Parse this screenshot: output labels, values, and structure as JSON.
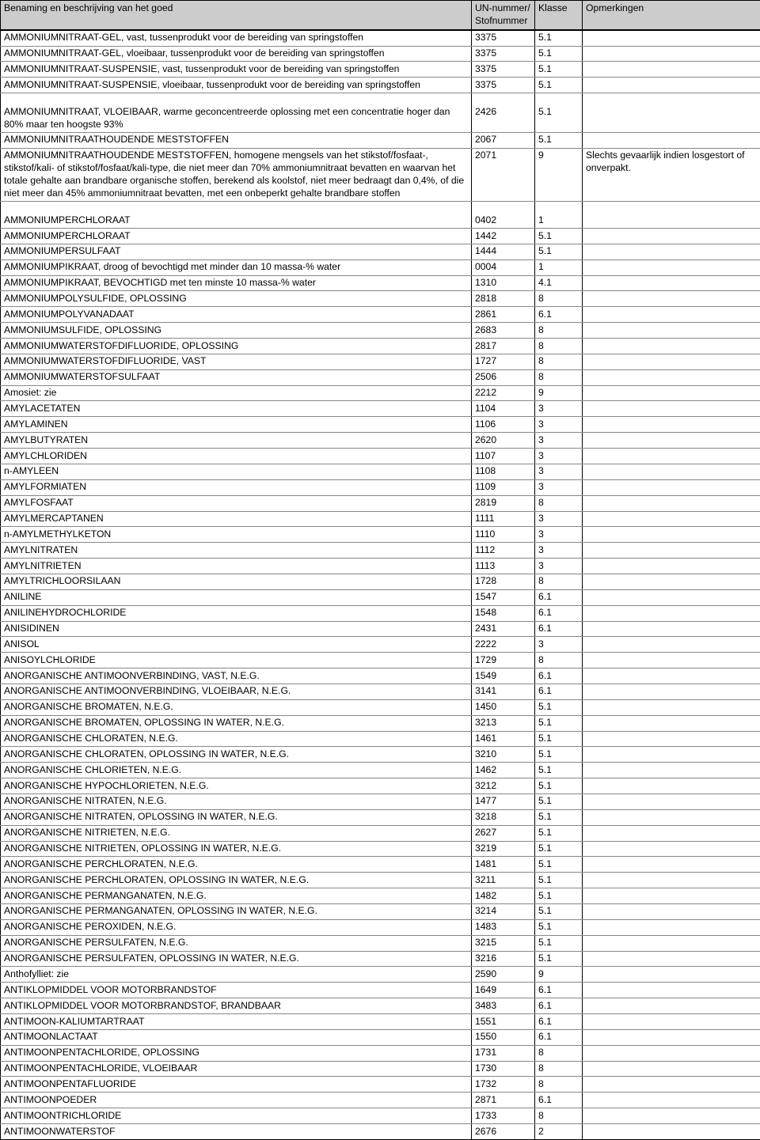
{
  "columns": [
    {
      "key": "name",
      "header": "Benaming en beschrijving van het goed"
    },
    {
      "key": "un",
      "header": "UN-nummer/\nStofnummer"
    },
    {
      "key": "klasse",
      "header": "Klasse"
    },
    {
      "key": "opm",
      "header": "Opmerkingen"
    }
  ],
  "rows": [
    {
      "name": "AMMONIUMNITRAAT-GEL, vast, tussenprodukt voor de bereiding van springstoffen",
      "un": "3375",
      "klasse": "5.1",
      "opm": ""
    },
    {
      "name": "AMMONIUMNITRAAT-GEL, vloeibaar, tussenprodukt voor de bereiding van springstoffen",
      "un": "3375",
      "klasse": "5.1",
      "opm": ""
    },
    {
      "name": "AMMONIUMNITRAAT-SUSPENSIE, vast, tussenprodukt voor de bereiding van springstoffen",
      "un": "3375",
      "klasse": "5.1",
      "opm": ""
    },
    {
      "name": "AMMONIUMNITRAAT-SUSPENSIE, vloeibaar, tussenprodukt voor de bereiding van springstoffen",
      "un": "3375",
      "klasse": "5.1",
      "opm": ""
    },
    {
      "spacer": true
    },
    {
      "name": "AMMONIUMNITRAAT, VLOEIBAAR, warme geconcentreerde oplossing met een concentratie hoger dan 80% maar ten hoogste 93%",
      "un": "2426",
      "klasse": "5.1",
      "opm": ""
    },
    {
      "name": "AMMONIUMNITRAATHOUDENDE MESTSTOFFEN",
      "un": "2067",
      "klasse": "5.1",
      "opm": ""
    },
    {
      "name": "AMMONIUMNITRAATHOUDENDE MESTSTOFFEN, homogene mengsels van het stikstof/fosfaat-, stikstof/kali- of stikstof/fosfaat/kali-type, die niet meer dan 70% ammoniumnitraat bevatten en waarvan het totale gehalte aan brandbare organische stoffen, berekend als koolstof, niet meer bedraagt dan 0,4%, of die niet meer dan 45% ammoniumnitraat bevatten, met een onbeperkt gehalte brandbare stoffen",
      "un": "2071",
      "klasse": "9",
      "opm": "Slechts gevaarlijk indien losgestort of onverpakt."
    },
    {
      "spacer": true
    },
    {
      "name": "AMMONIUMPERCHLORAAT",
      "un": "0402",
      "klasse": "1",
      "opm": ""
    },
    {
      "name": "AMMONIUMPERCHLORAAT",
      "un": "1442",
      "klasse": "5.1",
      "opm": ""
    },
    {
      "name": "AMMONIUMPERSULFAAT",
      "un": "1444",
      "klasse": "5.1",
      "opm": ""
    },
    {
      "name": "AMMONIUMPIKRAAT, droog of bevochtigd met minder dan 10 massa-% water",
      "un": "0004",
      "klasse": "1",
      "opm": ""
    },
    {
      "name": "AMMONIUMPIKRAAT, BEVOCHTIGD met ten minste 10 massa-% water",
      "un": "1310",
      "klasse": "4.1",
      "opm": ""
    },
    {
      "name": "AMMONIUMPOLYSULFIDE, OPLOSSING",
      "un": "2818",
      "klasse": "8",
      "opm": ""
    },
    {
      "name": "AMMONIUMPOLYVANADAAT",
      "un": "2861",
      "klasse": "6.1",
      "opm": ""
    },
    {
      "name": "AMMONIUMSULFIDE, OPLOSSING",
      "un": "2683",
      "klasse": "8",
      "opm": ""
    },
    {
      "name": "AMMONIUMWATERSTOFDIFLUORIDE, OPLOSSING",
      "un": "2817",
      "klasse": "8",
      "opm": ""
    },
    {
      "name": "AMMONIUMWATERSTOFDIFLUORIDE, VAST",
      "un": "1727",
      "klasse": "8",
      "opm": ""
    },
    {
      "name": "AMMONIUMWATERSTOFSULFAAT",
      "un": "2506",
      "klasse": "8",
      "opm": ""
    },
    {
      "name": "Amosiet: zie",
      "un": "2212",
      "klasse": "9",
      "opm": ""
    },
    {
      "name": "AMYLACETATEN",
      "un": "1104",
      "klasse": "3",
      "opm": ""
    },
    {
      "name": "AMYLAMINEN",
      "un": "1106",
      "klasse": "3",
      "opm": ""
    },
    {
      "name": "AMYLBUTYRATEN",
      "un": "2620",
      "klasse": "3",
      "opm": ""
    },
    {
      "name": "AMYLCHLORIDEN",
      "un": "1107",
      "klasse": "3",
      "opm": ""
    },
    {
      "name": "n-AMYLEEN",
      "un": "1108",
      "klasse": "3",
      "opm": ""
    },
    {
      "name": "AMYLFORMIATEN",
      "un": "1109",
      "klasse": "3",
      "opm": ""
    },
    {
      "name": "AMYLFOSFAAT",
      "un": "2819",
      "klasse": "8",
      "opm": ""
    },
    {
      "name": "AMYLMERCAPTANEN",
      "un": "1111",
      "klasse": "3",
      "opm": ""
    },
    {
      "name": "n-AMYLMETHYLKETON",
      "un": "1110",
      "klasse": "3",
      "opm": ""
    },
    {
      "name": "AMYLNITRATEN",
      "un": "1112",
      "klasse": "3",
      "opm": ""
    },
    {
      "name": "AMYLNITRIETEN",
      "un": "1113",
      "klasse": "3",
      "opm": ""
    },
    {
      "name": "AMYLTRICHLOORSILAAN",
      "un": "1728",
      "klasse": "8",
      "opm": ""
    },
    {
      "name": "ANILINE",
      "un": "1547",
      "klasse": "6.1",
      "opm": ""
    },
    {
      "name": "ANILINEHYDROCHLORIDE",
      "un": "1548",
      "klasse": "6.1",
      "opm": ""
    },
    {
      "name": "ANISIDINEN",
      "un": "2431",
      "klasse": "6.1",
      "opm": ""
    },
    {
      "name": "ANISOL",
      "un": "2222",
      "klasse": "3",
      "opm": ""
    },
    {
      "name": "ANISOYLCHLORIDE",
      "un": "1729",
      "klasse": "8",
      "opm": ""
    },
    {
      "name": "ANORGANISCHE ANTIMOONVERBINDING, VAST, N.E.G.",
      "un": "1549",
      "klasse": "6.1",
      "opm": ""
    },
    {
      "name": "ANORGANISCHE ANTIMOONVERBINDING, VLOEIBAAR, N.E.G.",
      "un": "3141",
      "klasse": "6.1",
      "opm": ""
    },
    {
      "name": "ANORGANISCHE BROMATEN, N.E.G.",
      "un": "1450",
      "klasse": "5.1",
      "opm": ""
    },
    {
      "name": "ANORGANISCHE BROMATEN, OPLOSSING IN WATER, N.E.G.",
      "un": "3213",
      "klasse": "5.1",
      "opm": ""
    },
    {
      "name": "ANORGANISCHE CHLORATEN, N.E.G.",
      "un": "1461",
      "klasse": "5.1",
      "opm": ""
    },
    {
      "name": "ANORGANISCHE CHLORATEN, OPLOSSING IN WATER, N.E.G.",
      "un": "3210",
      "klasse": "5.1",
      "opm": ""
    },
    {
      "name": "ANORGANISCHE CHLORIETEN, N.E.G.",
      "un": "1462",
      "klasse": "5.1",
      "opm": ""
    },
    {
      "name": "ANORGANISCHE HYPOCHLORIETEN, N.E.G.",
      "un": "3212",
      "klasse": "5.1",
      "opm": ""
    },
    {
      "name": "ANORGANISCHE NITRATEN, N.E.G.",
      "un": "1477",
      "klasse": "5.1",
      "opm": ""
    },
    {
      "name": "ANORGANISCHE NITRATEN, OPLOSSING IN WATER, N.E.G.",
      "un": "3218",
      "klasse": "5.1",
      "opm": ""
    },
    {
      "name": "ANORGANISCHE NITRIETEN, N.E.G.",
      "un": "2627",
      "klasse": "5.1",
      "opm": ""
    },
    {
      "name": "ANORGANISCHE NITRIETEN, OPLOSSING IN WATER, N.E.G.",
      "un": "3219",
      "klasse": "5.1",
      "opm": ""
    },
    {
      "name": "ANORGANISCHE PERCHLORATEN, N.E.G.",
      "un": "1481",
      "klasse": "5.1",
      "opm": ""
    },
    {
      "name": "ANORGANISCHE PERCHLORATEN, OPLOSSING IN WATER, N.E.G.",
      "un": "3211",
      "klasse": "5.1",
      "opm": ""
    },
    {
      "name": "ANORGANISCHE PERMANGANATEN, N.E.G.",
      "un": "1482",
      "klasse": "5.1",
      "opm": ""
    },
    {
      "name": "ANORGANISCHE PERMANGANATEN, OPLOSSING IN WATER, N.E.G.",
      "un": "3214",
      "klasse": "5.1",
      "opm": ""
    },
    {
      "name": "ANORGANISCHE PEROXIDEN, N.E.G.",
      "un": "1483",
      "klasse": "5.1",
      "opm": ""
    },
    {
      "name": "ANORGANISCHE PERSULFATEN, N.E.G.",
      "un": "3215",
      "klasse": "5.1",
      "opm": ""
    },
    {
      "name": "ANORGANISCHE PERSULFATEN, OPLOSSING IN WATER, N.E.G.",
      "un": "3216",
      "klasse": "5.1",
      "opm": ""
    },
    {
      "name": "Anthofylliet: zie",
      "un": "2590",
      "klasse": "9",
      "opm": ""
    },
    {
      "name": "ANTIKLOPMIDDEL VOOR MOTORBRANDSTOF",
      "un": "1649",
      "klasse": "6.1",
      "opm": ""
    },
    {
      "name": "ANTIKLOPMIDDEL VOOR MOTORBRANDSTOF, BRANDBAAR",
      "un": "3483",
      "klasse": "6.1",
      "opm": ""
    },
    {
      "name": "ANTIMOON-KALIUMTARTRAAT",
      "un": "1551",
      "klasse": "6.1",
      "opm": ""
    },
    {
      "name": "ANTIMOONLACTAAT",
      "un": "1550",
      "klasse": "6.1",
      "opm": ""
    },
    {
      "name": "ANTIMOONPENTACHLORIDE, OPLOSSING",
      "un": "1731",
      "klasse": "8",
      "opm": ""
    },
    {
      "name": "ANTIMOONPENTACHLORIDE, VLOEIBAAR",
      "un": "1730",
      "klasse": "8",
      "opm": ""
    },
    {
      "name": "ANTIMOONPENTAFLUORIDE",
      "un": "1732",
      "klasse": "8",
      "opm": ""
    },
    {
      "name": "ANTIMOONPOEDER",
      "un": "2871",
      "klasse": "6.1",
      "opm": ""
    },
    {
      "name": "ANTIMOONTRICHLORIDE",
      "un": "1733",
      "klasse": "8",
      "opm": ""
    },
    {
      "name": "ANTIMOONWATERSTOF",
      "un": "2676",
      "klasse": "2",
      "opm": ""
    }
  ]
}
